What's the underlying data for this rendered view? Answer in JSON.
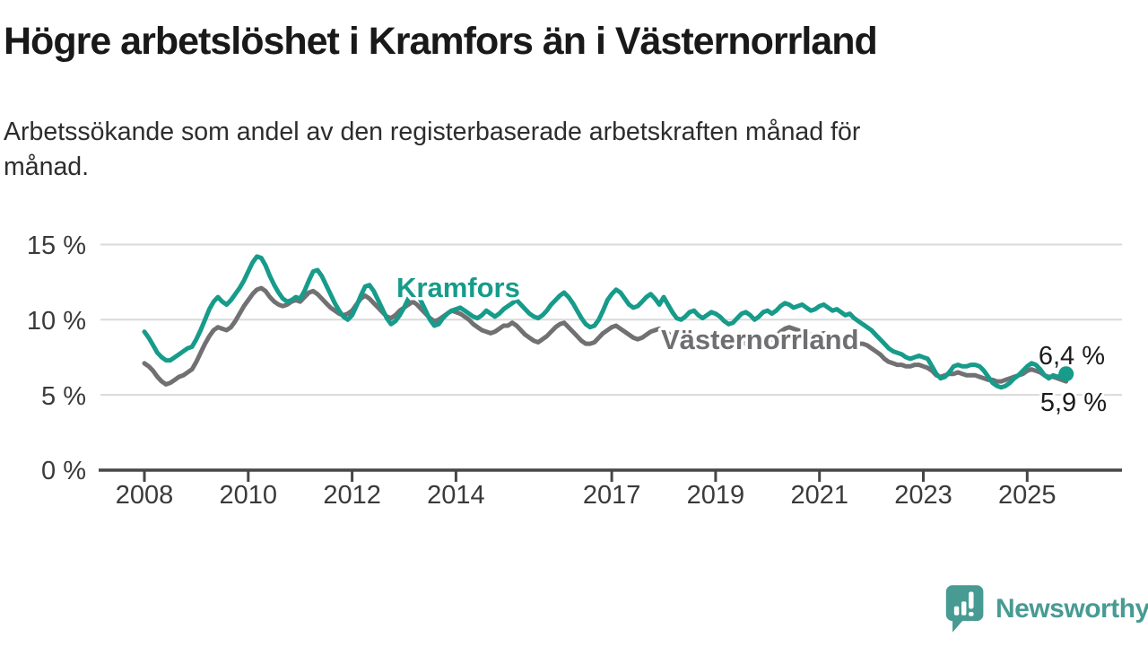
{
  "chart_data": {
    "type": "line",
    "title": "Högre arbetslöshet i Kramfors än i Västernorrland",
    "subtitle_lines": [
      "Arbetssökande som andel av den registerbaserade arbetskraften månad för",
      "månad."
    ],
    "unit": "%",
    "x_start": "2008-01",
    "x_end": "2025-10",
    "frequency": "monthly",
    "grid": "horizontal",
    "legend_position": "inline-labels",
    "y_axis": {
      "ticks": [
        "15 %",
        "10 %",
        "5 %",
        "0 %"
      ],
      "tick_values": [
        15,
        10,
        5,
        0
      ],
      "ylim": [
        0,
        16.5
      ]
    },
    "x_axis": {
      "tick_labels": [
        "2008",
        "2010",
        "2012",
        "2014",
        "2017",
        "2019",
        "2021",
        "2023",
        "2025"
      ],
      "tick_years": [
        2008,
        2010,
        2012,
        2014,
        2017,
        2019,
        2021,
        2023,
        2025
      ]
    },
    "series": [
      {
        "name": "Kramfors",
        "color": "#179b8a",
        "end_label": "6,4 %",
        "last_value": 6.4,
        "values": [
          9.2,
          8.8,
          8.3,
          7.8,
          7.5,
          7.3,
          7.3,
          7.5,
          7.7,
          7.9,
          8.1,
          8.2,
          8.7,
          9.3,
          10.0,
          10.7,
          11.2,
          11.5,
          11.2,
          11.0,
          11.3,
          11.7,
          12.1,
          12.6,
          13.2,
          13.8,
          14.2,
          14.1,
          13.6,
          12.9,
          12.3,
          11.8,
          11.4,
          11.2,
          11.3,
          11.5,
          11.4,
          11.9,
          12.6,
          13.2,
          13.3,
          12.9,
          12.3,
          11.7,
          11.1,
          10.6,
          10.2,
          10.0,
          10.3,
          10.9,
          11.6,
          12.2,
          12.3,
          11.9,
          11.3,
          10.7,
          10.1,
          9.7,
          9.9,
          10.3,
          10.8,
          11.4,
          11.9,
          11.7,
          11.2,
          10.6,
          10.0,
          9.6,
          9.7,
          10.1,
          10.4,
          10.6,
          10.7,
          10.8,
          10.6,
          10.4,
          10.2,
          10.1,
          10.3,
          10.6,
          10.4,
          10.2,
          10.4,
          10.7,
          10.9,
          11.1,
          11.3,
          11.0,
          10.7,
          10.4,
          10.2,
          10.1,
          10.3,
          10.6,
          11.0,
          11.3,
          11.6,
          11.8,
          11.5,
          11.1,
          10.6,
          10.1,
          9.7,
          9.5,
          9.6,
          10.0,
          10.6,
          11.3,
          11.7,
          12.0,
          11.8,
          11.4,
          11.0,
          10.8,
          10.9,
          11.2,
          11.5,
          11.7,
          11.4,
          11.0,
          11.5,
          11.0,
          10.5,
          10.1,
          10.0,
          10.2,
          10.5,
          10.6,
          10.3,
          10.1,
          10.3,
          10.5,
          10.4,
          10.2,
          9.9,
          9.7,
          9.8,
          10.1,
          10.4,
          10.5,
          10.3,
          10.0,
          10.2,
          10.5,
          10.6,
          10.4,
          10.6,
          10.9,
          11.1,
          11.0,
          10.8,
          10.9,
          11.0,
          10.8,
          10.6,
          10.7,
          10.9,
          11.0,
          10.8,
          10.6,
          10.7,
          10.5,
          10.3,
          10.4,
          10.1,
          9.9,
          9.7,
          9.5,
          9.3,
          9.0,
          8.7,
          8.4,
          8.1,
          7.9,
          7.8,
          7.7,
          7.5,
          7.4,
          7.5,
          7.6,
          7.5,
          7.4,
          6.9,
          6.4,
          6.1,
          6.2,
          6.5,
          6.9,
          7.0,
          6.9,
          6.9,
          7.0,
          7.0,
          6.9,
          6.6,
          6.2,
          5.8,
          5.6,
          5.5,
          5.6,
          5.8,
          6.1,
          6.3,
          6.6,
          6.9,
          7.1,
          7.0,
          6.7,
          6.3,
          6.1,
          6.3,
          6.2,
          6.3,
          6.4
        ]
      },
      {
        "name": "Västernorrland",
        "color": "#717174",
        "end_label": "5,9 %",
        "last_value": 5.9,
        "values": [
          7.1,
          6.9,
          6.6,
          6.2,
          5.9,
          5.7,
          5.8,
          6.0,
          6.2,
          6.3,
          6.5,
          6.7,
          7.2,
          7.8,
          8.4,
          8.9,
          9.3,
          9.5,
          9.4,
          9.3,
          9.5,
          9.9,
          10.4,
          10.9,
          11.3,
          11.7,
          12.0,
          12.1,
          11.9,
          11.5,
          11.2,
          11.0,
          10.9,
          11.0,
          11.2,
          11.3,
          11.2,
          11.5,
          11.8,
          11.9,
          11.7,
          11.4,
          11.1,
          10.8,
          10.6,
          10.4,
          10.3,
          10.4,
          10.6,
          11.0,
          11.4,
          11.6,
          11.4,
          11.1,
          10.8,
          10.5,
          10.2,
          10.1,
          10.3,
          10.6,
          10.8,
          11.0,
          11.2,
          11.0,
          10.7,
          10.4,
          10.1,
          9.9,
          10.0,
          10.2,
          10.4,
          10.6,
          10.5,
          10.4,
          10.2,
          10.0,
          9.7,
          9.5,
          9.3,
          9.2,
          9.1,
          9.2,
          9.4,
          9.6,
          9.6,
          9.8,
          9.6,
          9.3,
          9.0,
          8.8,
          8.6,
          8.5,
          8.7,
          8.9,
          9.2,
          9.5,
          9.7,
          9.8,
          9.5,
          9.2,
          8.9,
          8.6,
          8.4,
          8.4,
          8.5,
          8.8,
          9.1,
          9.3,
          9.5,
          9.6,
          9.4,
          9.2,
          9.0,
          8.8,
          8.7,
          8.8,
          9.0,
          9.2,
          9.3,
          9.4,
          9.3,
          9.1,
          8.8,
          8.5,
          8.3,
          8.2,
          8.3,
          8.5,
          8.6,
          8.4,
          8.2,
          8.3,
          8.4,
          8.3,
          8.1,
          8.0,
          8.1,
          8.3,
          8.5,
          8.4,
          8.3,
          8.2,
          8.3,
          8.5,
          8.6,
          8.7,
          8.9,
          9.2,
          9.4,
          9.5,
          9.4,
          9.3,
          9.2,
          9.1,
          9.0,
          8.9,
          9.0,
          9.1,
          9.0,
          8.9,
          8.8,
          8.8,
          8.7,
          8.6,
          8.5,
          8.4,
          8.4,
          8.3,
          8.1,
          7.9,
          7.7,
          7.4,
          7.2,
          7.1,
          7.0,
          7.0,
          6.9,
          6.9,
          7.0,
          7.0,
          6.9,
          6.8,
          6.6,
          6.3,
          6.2,
          6.3,
          6.4,
          6.4,
          6.5,
          6.4,
          6.3,
          6.3,
          6.3,
          6.2,
          6.1,
          6.0,
          6.0,
          5.9,
          5.9,
          6.0,
          6.1,
          6.2,
          6.3,
          6.4,
          6.6,
          6.7,
          6.6,
          6.5,
          6.3,
          6.2,
          6.2,
          6.1,
          6.0,
          5.9
        ]
      }
    ]
  },
  "colors": {
    "kramfors_line": "#179b8a",
    "vasternorrland_line": "#717174",
    "gridline": "#dadada",
    "axis": "#464646",
    "tick_text": "#3a3a3a",
    "brand_teal": "#479b93"
  },
  "branding": {
    "logo_text": "Newsworthy",
    "logo_icon": "bar-chart-speech-bubble-icon"
  }
}
